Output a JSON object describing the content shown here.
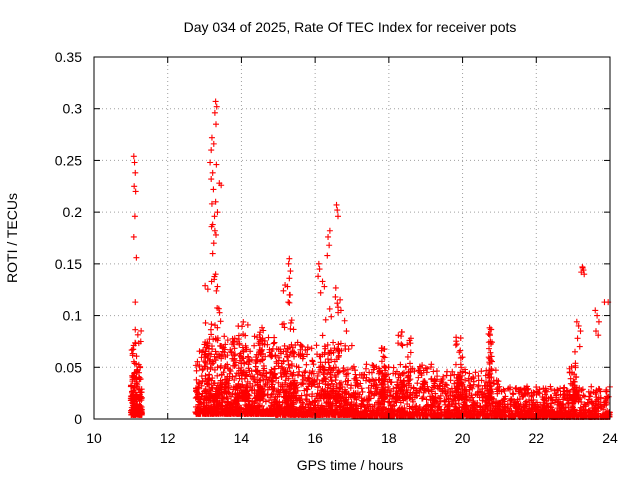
{
  "chart_data": {
    "type": "scatter",
    "title": "Day 034 of 2025, Rate Of TEC Index for receiver pots",
    "xlabel": "GPS time / hours",
    "ylabel": "ROTI / TECUs",
    "xlim": [
      10,
      24
    ],
    "ylim": [
      0,
      0.35
    ],
    "xticks": [
      10,
      12,
      14,
      16,
      18,
      20,
      22,
      24
    ],
    "xtick_labels": [
      "10",
      "12",
      "14",
      "16",
      "18",
      "20",
      "22",
      "24"
    ],
    "yticks": [
      0,
      0.05,
      0.1,
      0.15,
      0.2,
      0.25,
      0.3,
      0.35
    ],
    "ytick_labels": [
      "0",
      "0.05",
      "0.1",
      "0.15",
      "0.2",
      "0.25",
      "0.3",
      "0.35"
    ],
    "grid": true,
    "marker": "+",
    "series": [
      {
        "name": "ROTI",
        "color": "#ff0000",
        "points": [
          [
            11.08,
            0.254
          ],
          [
            11.1,
            0.248
          ],
          [
            11.12,
            0.238
          ],
          [
            11.09,
            0.225
          ],
          [
            11.13,
            0.22
          ],
          [
            11.11,
            0.196
          ],
          [
            11.08,
            0.176
          ],
          [
            11.15,
            0.156
          ],
          [
            11.12,
            0.113
          ],
          [
            13.3,
            0.307
          ],
          [
            13.33,
            0.302
          ],
          [
            13.28,
            0.296
          ],
          [
            13.31,
            0.285
          ],
          [
            13.2,
            0.272
          ],
          [
            13.25,
            0.266
          ],
          [
            13.18,
            0.26
          ],
          [
            13.15,
            0.248
          ],
          [
            13.32,
            0.246
          ],
          [
            13.22,
            0.238
          ],
          [
            13.18,
            0.232
          ],
          [
            13.4,
            0.228
          ],
          [
            13.45,
            0.226
          ],
          [
            13.24,
            0.222
          ],
          [
            13.3,
            0.21
          ],
          [
            13.2,
            0.208
          ],
          [
            13.35,
            0.2
          ],
          [
            13.27,
            0.196
          ],
          [
            13.22,
            0.188
          ],
          [
            13.19,
            0.186
          ],
          [
            13.28,
            0.182
          ],
          [
            13.31,
            0.178
          ],
          [
            13.25,
            0.17
          ],
          [
            13.22,
            0.16
          ],
          [
            13.3,
            0.14
          ],
          [
            13.26,
            0.135
          ],
          [
            13.19,
            0.133
          ],
          [
            13.35,
            0.128
          ],
          [
            15.3,
            0.155
          ],
          [
            15.28,
            0.15
          ],
          [
            15.33,
            0.143
          ],
          [
            15.3,
            0.136
          ],
          [
            15.25,
            0.128
          ],
          [
            15.32,
            0.12
          ],
          [
            15.27,
            0.113
          ],
          [
            16.58,
            0.207
          ],
          [
            16.6,
            0.202
          ],
          [
            16.62,
            0.196
          ],
          [
            16.4,
            0.182
          ],
          [
            16.35,
            0.176
          ],
          [
            16.38,
            0.168
          ],
          [
            16.33,
            0.158
          ],
          [
            16.1,
            0.15
          ],
          [
            16.12,
            0.145
          ],
          [
            16.08,
            0.138
          ],
          [
            16.2,
            0.133
          ],
          [
            16.25,
            0.128
          ],
          [
            16.15,
            0.122
          ],
          [
            16.55,
            0.118
          ],
          [
            16.6,
            0.112
          ],
          [
            16.7,
            0.105
          ],
          [
            16.8,
            0.095
          ],
          [
            16.85,
            0.085
          ],
          [
            23.25,
            0.147
          ],
          [
            23.28,
            0.144
          ],
          [
            23.22,
            0.142
          ],
          [
            23.3,
            0.14
          ],
          [
            23.26,
            0.146
          ],
          [
            23.85,
            0.113
          ],
          [
            23.95,
            0.113
          ],
          [
            23.6,
            0.105
          ],
          [
            23.65,
            0.1
          ],
          [
            23.7,
            0.094
          ],
          [
            23.62,
            0.085
          ],
          [
            23.68,
            0.081
          ],
          [
            23.1,
            0.094
          ],
          [
            23.15,
            0.09
          ],
          [
            23.2,
            0.085
          ],
          [
            23.12,
            0.078
          ],
          [
            23.18,
            0.07
          ],
          [
            23.05,
            0.065
          ]
        ]
      }
    ]
  }
}
